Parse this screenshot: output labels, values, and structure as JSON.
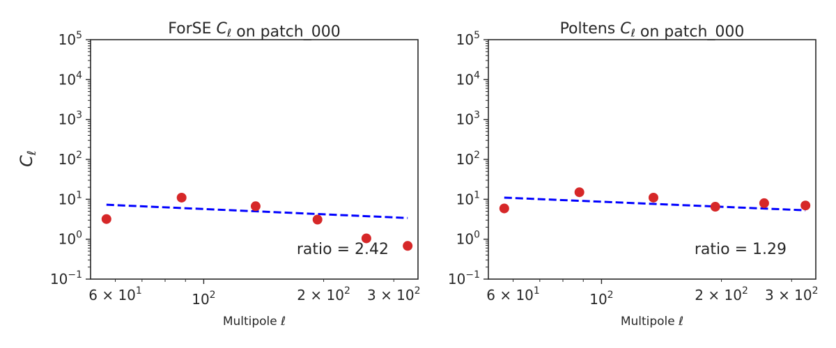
{
  "figure": {
    "ylabel": "C_ℓ",
    "colors": {
      "points": "#d62728",
      "fit_line": "#0000ff",
      "axes": "#262626"
    }
  },
  "chart_data": [
    {
      "type": "scatter",
      "title": "ForSE C_ℓ on patch_000",
      "xlabel": "Multipole ℓ",
      "ylabel": "C_ℓ",
      "xscale": "log",
      "yscale": "log",
      "xlim": [
        52,
        345
      ],
      "ylim": [
        0.1,
        100000
      ],
      "xticks": [
        {
          "value": 60,
          "label": "6 × 10",
          "exp": "1"
        },
        {
          "value": 100,
          "label": "10",
          "exp": "2"
        },
        {
          "value": 200,
          "label": "2 × 10",
          "exp": "2"
        },
        {
          "value": 300,
          "label": "3 × 10",
          "exp": "2"
        }
      ],
      "yticks": [
        {
          "value": 0.1,
          "label": "10",
          "exp": "−1"
        },
        {
          "value": 1,
          "label": "10",
          "exp": "0"
        },
        {
          "value": 10,
          "label": "10",
          "exp": "1"
        },
        {
          "value": 100,
          "label": "10",
          "exp": "2"
        },
        {
          "value": 1000,
          "label": "10",
          "exp": "3"
        },
        {
          "value": 10000,
          "label": "10",
          "exp": "4"
        },
        {
          "value": 100000,
          "label": "10",
          "exp": "5"
        }
      ],
      "grid": false,
      "points": [
        {
          "x": 57,
          "y": 3.2
        },
        {
          "x": 88,
          "y": 11
        },
        {
          "x": 135,
          "y": 6.7
        },
        {
          "x": 193,
          "y": 3.1
        },
        {
          "x": 256,
          "y": 1.05
        },
        {
          "x": 325,
          "y": 0.68
        }
      ],
      "fit": {
        "x": [
          57,
          325
        ],
        "y": [
          7.3,
          3.4
        ]
      },
      "annotation": "ratio = 2.42"
    },
    {
      "type": "scatter",
      "title": "Poltens C_ℓ on patch_000",
      "xlabel": "Multipole ℓ",
      "ylabel": "",
      "xscale": "log",
      "yscale": "log",
      "xlim": [
        52,
        345
      ],
      "ylim": [
        0.1,
        100000
      ],
      "xticks": [
        {
          "value": 60,
          "label": "6 × 10",
          "exp": "1"
        },
        {
          "value": 100,
          "label": "10",
          "exp": "2"
        },
        {
          "value": 200,
          "label": "2 × 10",
          "exp": "2"
        },
        {
          "value": 300,
          "label": "3 × 10",
          "exp": "2"
        }
      ],
      "yticks": [
        {
          "value": 0.1,
          "label": "10",
          "exp": "−1"
        },
        {
          "value": 1,
          "label": "10",
          "exp": "0"
        },
        {
          "value": 10,
          "label": "10",
          "exp": "1"
        },
        {
          "value": 100,
          "label": "10",
          "exp": "2"
        },
        {
          "value": 1000,
          "label": "10",
          "exp": "3"
        },
        {
          "value": 10000,
          "label": "10",
          "exp": "4"
        },
        {
          "value": 100000,
          "label": "10",
          "exp": "5"
        }
      ],
      "grid": false,
      "points": [
        {
          "x": 57,
          "y": 5.9
        },
        {
          "x": 88,
          "y": 15
        },
        {
          "x": 135,
          "y": 11
        },
        {
          "x": 193,
          "y": 6.5
        },
        {
          "x": 256,
          "y": 8.0
        },
        {
          "x": 325,
          "y": 7.0
        }
      ],
      "fit": {
        "x": [
          57,
          325
        ],
        "y": [
          11,
          5.3
        ]
      },
      "annotation": "ratio = 1.29"
    }
  ]
}
